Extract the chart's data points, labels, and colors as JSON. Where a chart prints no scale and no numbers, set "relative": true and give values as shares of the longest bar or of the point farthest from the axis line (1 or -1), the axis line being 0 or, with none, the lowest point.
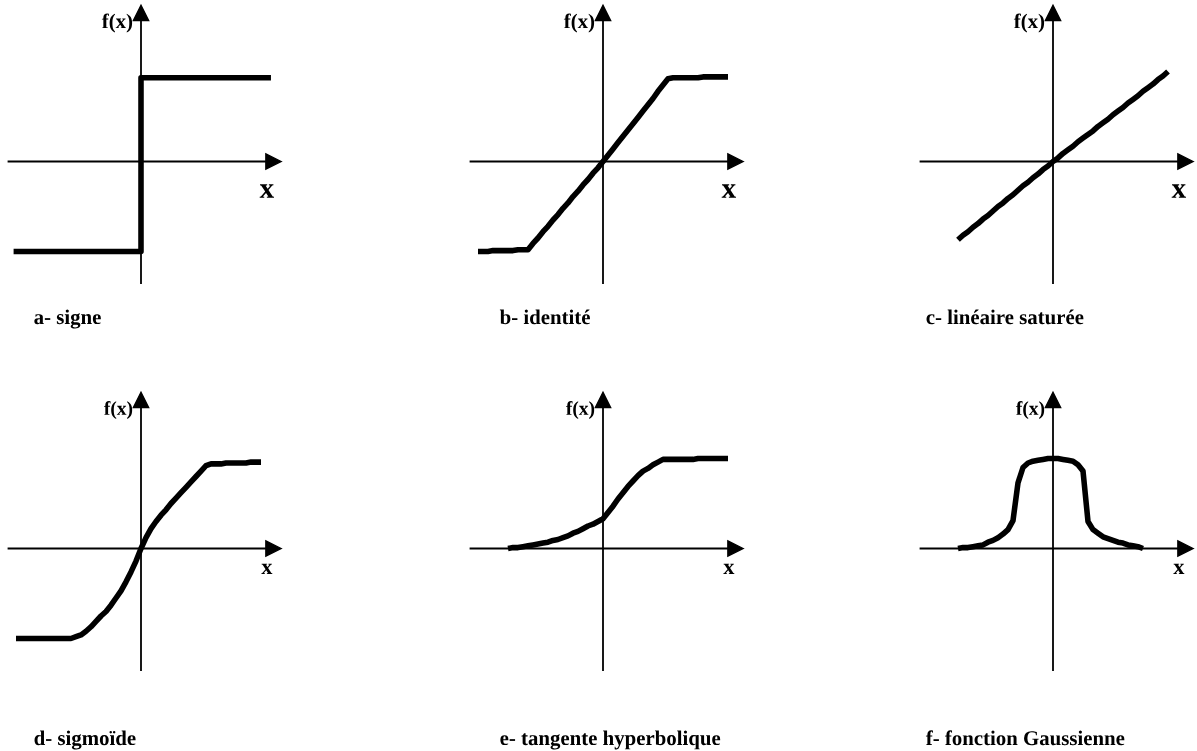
{
  "chart_data": [
    {
      "type": "step",
      "title": "a- signe",
      "xlabel": "x",
      "ylabel": "f(x)",
      "relative": true,
      "categories": [
        null,
        null,
        null,
        null,
        null,
        null,
        null,
        null,
        null,
        null,
        null,
        null,
        null,
        null,
        null,
        null,
        null,
        null,
        null,
        null,
        null,
        null,
        null,
        null,
        null,
        null,
        null,
        null,
        null,
        null,
        null,
        null,
        null,
        null,
        null,
        null,
        null,
        null,
        null,
        null,
        null,
        null,
        null,
        null,
        null,
        null,
        null,
        null,
        null,
        null,
        null,
        null,
        null,
        null,
        null,
        null,
        null,
        null,
        null,
        null,
        null,
        null,
        null,
        null,
        null,
        null,
        null,
        null,
        null,
        null,
        null,
        null,
        null,
        null,
        null,
        null,
        null,
        null,
        null,
        null,
        null,
        null,
        null,
        null,
        null,
        null,
        null,
        null,
        null,
        null,
        null,
        null,
        null,
        null,
        null,
        null,
        null,
        null,
        null,
        null,
        null,
        null,
        null,
        null
      ],
      "series": [
        {
          "color": "#000000",
          "values": [
            null,
            null,
            -1,
            -1,
            -1,
            -1,
            -1,
            -1,
            -1,
            -1,
            -1,
            -1,
            -1,
            -1,
            -1,
            -1,
            -1,
            -1,
            -1,
            -1,
            -1,
            -1,
            -1,
            -1,
            -1,
            -1,
            -1,
            -1,
            -1,
            -1,
            -1,
            -1,
            -1,
            -1,
            -1,
            -1,
            -1,
            -1,
            -1,
            -1,
            -1,
            -1,
            -1,
            -1,
            -1,
            -1,
            -1,
            -1,
            -1,
            -1,
            -1,
            -1,
            0.93,
            0.93,
            0.93,
            0.93,
            0.93,
            0.93,
            0.93,
            0.93,
            0.93,
            0.93,
            0.93,
            0.93,
            0.93,
            0.93,
            0.93,
            0.93,
            0.93,
            0.93,
            0.93,
            0.93,
            0.93,
            0.93,
            0.93,
            0.93,
            0.93,
            0.93,
            0.93,
            0.93,
            0.93,
            0.93,
            0.93,
            0.93,
            0.93,
            0.93,
            0.93,
            0.93,
            0.93,
            0.93,
            0.93,
            0.93,
            0.93,
            0.93,
            0.93,
            0.93,
            0.93,
            0.93,
            0.93,
            0.93,
            0.93,
            0.93,
            0.93,
            null
          ]
        }
      ]
    },
    {
      "type": "line",
      "title": "b- identité",
      "xlabel": "x",
      "ylabel": "f(x)",
      "relative": true,
      "categories": [
        null,
        null,
        null,
        null,
        null,
        null,
        null,
        null,
        null,
        null,
        null,
        null,
        null,
        null,
        null,
        null,
        null,
        null,
        null,
        null,
        null,
        null,
        null,
        null,
        null,
        null,
        null,
        null,
        null,
        null,
        null,
        null,
        null,
        null,
        null,
        null,
        null,
        null,
        null,
        null,
        null,
        null,
        null,
        null,
        null,
        null,
        null,
        null,
        null,
        null,
        null,
        null,
        null
      ],
      "series": [
        {
          "color": "#000000",
          "values": [
            null,
            -1,
            -1,
            -1,
            -0.99,
            -0.99,
            -0.99,
            -0.99,
            -0.99,
            -0.98,
            -0.98,
            -0.98,
            -0.91,
            -0.85,
            -0.78,
            -0.72,
            -0.65,
            -0.59,
            -0.52,
            -0.46,
            -0.39,
            -0.33,
            -0.26,
            -0.2,
            -0.13,
            -0.07,
            0,
            0.07,
            0.14,
            0.21,
            0.28,
            0.35,
            0.42,
            0.49,
            0.56,
            0.63,
            0.7,
            0.78,
            0.85,
            0.92,
            0.93,
            0.93,
            0.93,
            0.93,
            0.93,
            0.93,
            0.94,
            0.94,
            0.94,
            0.94,
            0.94,
            0.94,
            null
          ]
        }
      ]
    },
    {
      "type": "line",
      "title": "c- linéaire saturée",
      "xlabel": "x",
      "ylabel": "f(x)",
      "relative": true,
      "categories": [
        null,
        null,
        null,
        null,
        null,
        null,
        null,
        null,
        null,
        null,
        null,
        null,
        null,
        null,
        null,
        null,
        null,
        null,
        null,
        null,
        null,
        null,
        null,
        null,
        null,
        null,
        null,
        null,
        null,
        null,
        null,
        null,
        null,
        null,
        null,
        null,
        null,
        null,
        null,
        null,
        null,
        null,
        null,
        null,
        null,
        null,
        null,
        null,
        null,
        null,
        null,
        null,
        null
      ],
      "series": [
        {
          "color": "#000000",
          "values": [
            null,
            null,
            null,
            null,
            null,
            null,
            null,
            -0.87,
            -0.82,
            -0.78,
            -0.73,
            -0.69,
            -0.64,
            -0.6,
            -0.55,
            -0.5,
            -0.46,
            -0.41,
            -0.37,
            -0.32,
            -0.27,
            -0.23,
            -0.18,
            -0.14,
            -0.09,
            -0.05,
            0,
            0.04,
            0.09,
            0.13,
            0.17,
            0.22,
            0.26,
            0.3,
            0.34,
            0.39,
            0.43,
            0.47,
            0.52,
            0.56,
            0.6,
            0.65,
            0.69,
            0.73,
            0.78,
            0.82,
            0.86,
            0.91,
            0.95,
            1,
            null,
            null,
            null
          ]
        }
      ]
    },
    {
      "type": "line",
      "title": "d- sigmoïde",
      "xlabel": "x",
      "ylabel": "f(x)",
      "relative": true,
      "categories": [
        null,
        null,
        null,
        null,
        null,
        null,
        null,
        null,
        null,
        null,
        null,
        null,
        null,
        null,
        null,
        null,
        null,
        null,
        null,
        null,
        null,
        null,
        null,
        null,
        null,
        null,
        null,
        null,
        null,
        null,
        null,
        null,
        null,
        null,
        null,
        null,
        null,
        null,
        null,
        null,
        null,
        null,
        null,
        null,
        null,
        null,
        null,
        null,
        null,
        null,
        null,
        null,
        null
      ],
      "series": [
        {
          "color": "#000000",
          "values": [
            null,
            -1,
            -1,
            -1,
            -1,
            -1,
            -1,
            -1,
            -1,
            -1,
            -1,
            -1,
            -1,
            -0.98,
            -0.96,
            -0.92,
            -0.87,
            -0.81,
            -0.75,
            -0.7,
            -0.63,
            -0.55,
            -0.47,
            -0.37,
            -0.26,
            -0.14,
            0,
            0.12,
            0.22,
            0.3,
            0.37,
            0.43,
            0.5,
            0.56,
            0.62,
            0.68,
            0.74,
            0.8,
            0.86,
            0.92,
            0.94,
            0.94,
            0.94,
            0.95,
            0.95,
            0.95,
            0.95,
            0.95,
            0.96,
            0.96,
            0.96,
            null,
            null
          ]
        }
      ]
    },
    {
      "type": "line",
      "title": "e- tangente hyperbolique",
      "xlabel": "x",
      "ylabel": "f(x)",
      "relative": true,
      "categories": [
        null,
        null,
        null,
        null,
        null,
        null,
        null,
        null,
        null,
        null,
        null,
        null,
        null,
        null,
        null,
        null,
        null,
        null,
        null,
        null,
        null,
        null,
        null,
        null,
        null,
        null,
        null,
        null,
        null,
        null,
        null,
        null,
        null,
        null,
        null,
        null,
        null,
        null,
        null,
        null,
        null,
        null,
        null,
        null,
        null,
        null,
        null,
        null,
        null,
        null,
        null,
        null,
        null
      ],
      "series": [
        {
          "color": "#000000",
          "values": [
            null,
            null,
            null,
            null,
            null,
            null,
            null,
            0,
            0.01,
            0.01,
            0.02,
            0.03,
            0.04,
            0.05,
            0.06,
            0.07,
            0.09,
            0.1,
            0.12,
            0.14,
            0.17,
            0.19,
            0.22,
            0.25,
            0.27,
            0.3,
            0.33,
            0.4,
            0.47,
            0.55,
            0.62,
            0.69,
            0.75,
            0.81,
            0.86,
            0.89,
            0.93,
            0.96,
            0.99,
            0.99,
            0.99,
            0.99,
            0.99,
            0.99,
            0.99,
            1,
            1,
            1,
            1,
            1,
            1,
            1,
            null
          ]
        }
      ]
    },
    {
      "type": "line",
      "title": "f- fonction Gaussienne",
      "xlabel": "x",
      "ylabel": "f(x)",
      "relative": true,
      "categories": [
        null,
        null,
        null,
        null,
        null,
        null,
        null,
        null,
        null,
        null,
        null,
        null,
        null,
        null,
        null,
        null,
        null,
        null,
        null,
        null,
        null,
        null,
        null,
        null,
        null,
        null,
        null,
        null,
        null,
        null,
        null,
        null,
        null,
        null,
        null,
        null,
        null,
        null,
        null,
        null,
        null,
        null,
        null,
        null,
        null,
        null,
        null,
        null,
        null,
        null,
        null,
        null,
        null
      ],
      "series": [
        {
          "color": "#000000",
          "values": [
            null,
            null,
            null,
            null,
            null,
            null,
            null,
            0,
            0.01,
            0.01,
            0.02,
            0.03,
            0.04,
            0.07,
            0.09,
            0.12,
            0.16,
            0.21,
            0.31,
            0.73,
            0.9,
            0.95,
            0.97,
            0.98,
            0.99,
            1,
            1,
            1,
            0.99,
            0.98,
            0.97,
            0.93,
            0.86,
            0.3,
            0.21,
            0.17,
            0.13,
            0.11,
            0.09,
            0.07,
            0.06,
            0.04,
            0.03,
            0.02,
            0,
            null,
            null,
            null,
            null,
            null,
            null,
            null,
            null
          ]
        }
      ]
    }
  ]
}
